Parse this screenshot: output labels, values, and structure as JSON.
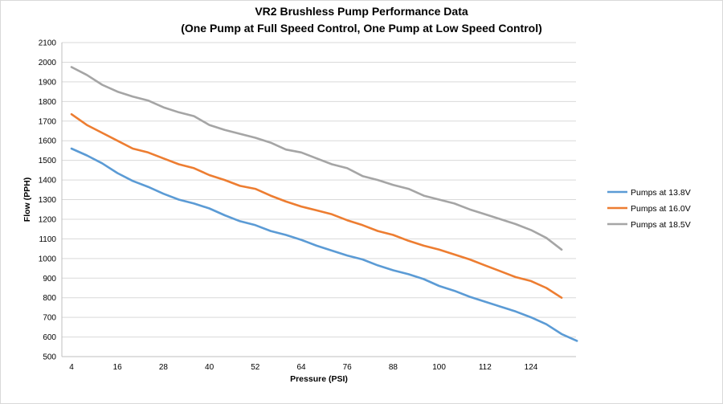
{
  "chart_data": {
    "type": "line",
    "title": "VR2 Brushless Pump Performance Data",
    "subtitle": "(One Pump at Full Speed Control, One Pump at Low Speed Control)",
    "xlabel": "Pressure (PSI)",
    "ylabel": "Flow (PPH)",
    "ylim": [
      500,
      2100
    ],
    "yticks": [
      500,
      600,
      700,
      800,
      900,
      1000,
      1100,
      1200,
      1300,
      1400,
      1500,
      1600,
      1700,
      1800,
      1900,
      2000,
      2100
    ],
    "xlim": [
      4,
      140
    ],
    "xticks": [
      4,
      16,
      28,
      40,
      52,
      64,
      76,
      88,
      100,
      112,
      124
    ],
    "grid": true,
    "legend_position": "right",
    "x": [
      4,
      8,
      12,
      16,
      20,
      24,
      28,
      32,
      36,
      40,
      44,
      48,
      52,
      56,
      60,
      64,
      68,
      72,
      76,
      80,
      84,
      88,
      92,
      96,
      100,
      104,
      108,
      112,
      116,
      120,
      124,
      128,
      132,
      136,
      140
    ],
    "series": [
      {
        "name": "Pumps at 13.8V",
        "color": "#5b9bd5",
        "values": [
          1560,
          1525,
          1485,
          1435,
          1395,
          1365,
          1330,
          1300,
          1280,
          1255,
          1220,
          1190,
          1170,
          1140,
          1120,
          1095,
          1065,
          1040,
          1015,
          995,
          965,
          940,
          920,
          895,
          860,
          835,
          805,
          780,
          755,
          730,
          700,
          665,
          615,
          580,
          null
        ]
      },
      {
        "name": "Pumps at 16.0V",
        "color": "#ed7d31",
        "values": [
          1735,
          1680,
          1640,
          1600,
          1560,
          1540,
          1510,
          1480,
          1460,
          1425,
          1400,
          1370,
          1355,
          1320,
          1290,
          1265,
          1245,
          1225,
          1195,
          1170,
          1140,
          1120,
          1090,
          1065,
          1045,
          1020,
          995,
          965,
          935,
          905,
          885,
          850,
          800,
          null,
          null
        ]
      },
      {
        "name": "Pumps at 18.5V",
        "color": "#a5a5a5",
        "values": [
          1975,
          1935,
          1885,
          1850,
          1825,
          1805,
          1770,
          1745,
          1725,
          1680,
          1655,
          1635,
          1615,
          1590,
          1555,
          1540,
          1510,
          1480,
          1460,
          1420,
          1400,
          1375,
          1355,
          1320,
          1300,
          1280,
          1250,
          1225,
          1200,
          1175,
          1145,
          1105,
          1045,
          null,
          null
        ]
      }
    ]
  }
}
